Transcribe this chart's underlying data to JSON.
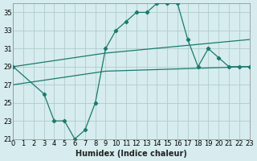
{
  "xlabel": "Humidex (Indice chaleur)",
  "bg_color": "#d6ecee",
  "grid_color": "#b0cccc",
  "line_color": "#1a7a6e",
  "xlim": [
    0,
    23
  ],
  "ylim": [
    21,
    36
  ],
  "yticks": [
    21,
    23,
    25,
    27,
    29,
    31,
    33,
    35
  ],
  "xticks": [
    0,
    1,
    2,
    3,
    4,
    5,
    6,
    7,
    8,
    9,
    10,
    11,
    12,
    13,
    14,
    15,
    16,
    17,
    18,
    19,
    20,
    21,
    22,
    23
  ],
  "line1_x": [
    0,
    3,
    4,
    5,
    6,
    7,
    8,
    9,
    10,
    11,
    12,
    13,
    14,
    15,
    16,
    17,
    18,
    19,
    20,
    21,
    22,
    23
  ],
  "line1_y": [
    29,
    26,
    23,
    23,
    21,
    22,
    25,
    31,
    33,
    34,
    35,
    35,
    36,
    36,
    36,
    32,
    29,
    31,
    30,
    29,
    29,
    29
  ],
  "line2_x": [
    0,
    3,
    9,
    23
  ],
  "line2_y": [
    29,
    29.5,
    30.5,
    32
  ],
  "line3_x": [
    0,
    3,
    9,
    23
  ],
  "line3_y": [
    27,
    27.5,
    28.5,
    29
  ]
}
